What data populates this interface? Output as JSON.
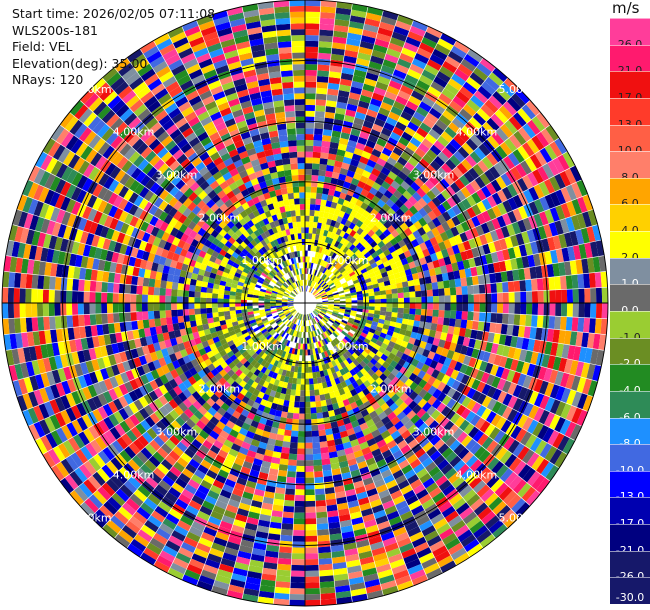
{
  "info": {
    "start_time": "Start time: 2026/02/05 07:11:08",
    "instrument": "WLS200s-181",
    "field": "Field: VEL",
    "elevation": "Elevation(deg): 35.00",
    "nrays": "NRays: 120"
  },
  "colorbar": {
    "unit": "m/s",
    "bins": [
      {
        "label": "26.0",
        "color": "#ff3d9a",
        "text": "#222222"
      },
      {
        "label": "21.0",
        "color": "#ff1a6e",
        "text": "#222222"
      },
      {
        "label": "17.0",
        "color": "#f01010",
        "text": "#222222"
      },
      {
        "label": "13.0",
        "color": "#ff3b2a",
        "text": "#222222"
      },
      {
        "label": "10.0",
        "color": "#ff5f45",
        "text": "#222222"
      },
      {
        "label": "8.0",
        "color": "#ff7f6a",
        "text": "#222222"
      },
      {
        "label": "6.0",
        "color": "#ffa500",
        "text": "#222222"
      },
      {
        "label": "4.0",
        "color": "#ffd000",
        "text": "#222222"
      },
      {
        "label": "2.0",
        "color": "#ffff00",
        "text": "#222222"
      },
      {
        "label": "1.0",
        "color": "#7f8fa0",
        "text": "#ffffff"
      },
      {
        "label": "0.0",
        "color": "#6a6a6a",
        "text": "#ffffff"
      },
      {
        "label": "-1.0",
        "color": "#9acd32",
        "text": "#222222"
      },
      {
        "label": "-2.0",
        "color": "#6b8e23",
        "text": "#ffffff"
      },
      {
        "label": "-4.0",
        "color": "#228b22",
        "text": "#ffffff"
      },
      {
        "label": "-6.0",
        "color": "#2e8b57",
        "text": "#ffffff"
      },
      {
        "label": "-8.0",
        "color": "#1e90ff",
        "text": "#ffffff"
      },
      {
        "label": "-10.0",
        "color": "#4169e1",
        "text": "#ffffff"
      },
      {
        "label": "-13.0",
        "color": "#0000ff",
        "text": "#ffffff"
      },
      {
        "label": "-17.0",
        "color": "#0000b0",
        "text": "#ffffff"
      },
      {
        "label": "-21.0",
        "color": "#000080",
        "text": "#ffffff"
      },
      {
        "label": "-26.0",
        "color": "#16186a",
        "text": "#ffffff"
      },
      {
        "label": "-30.0",
        "color": "#16186a",
        "text": "#ffffff"
      }
    ]
  },
  "chart_data": {
    "type": "heatmap",
    "projection": "polar PPI",
    "field": "VEL",
    "units": "m/s",
    "elevation_deg": 35.0,
    "n_rays": 120,
    "max_range_km": 5.0,
    "range_rings_km": [
      1.0,
      2.0,
      3.0,
      4.0,
      5.0
    ],
    "ring_labels": [
      "1.00km",
      "2.00km",
      "3.00km",
      "4.00km",
      "5.00km"
    ],
    "levels": [
      -30.0,
      -26.0,
      -21.0,
      -17.0,
      -13.0,
      -10.0,
      -8.0,
      -6.0,
      -4.0,
      -2.0,
      -1.0,
      0.0,
      1.0,
      2.0,
      4.0,
      6.0,
      8.0,
      10.0,
      13.0,
      17.0,
      21.0,
      26.0
    ],
    "pattern_note": "low-magnitude velocities (yellow / grey) near center, random noise across full range at outer gates"
  }
}
